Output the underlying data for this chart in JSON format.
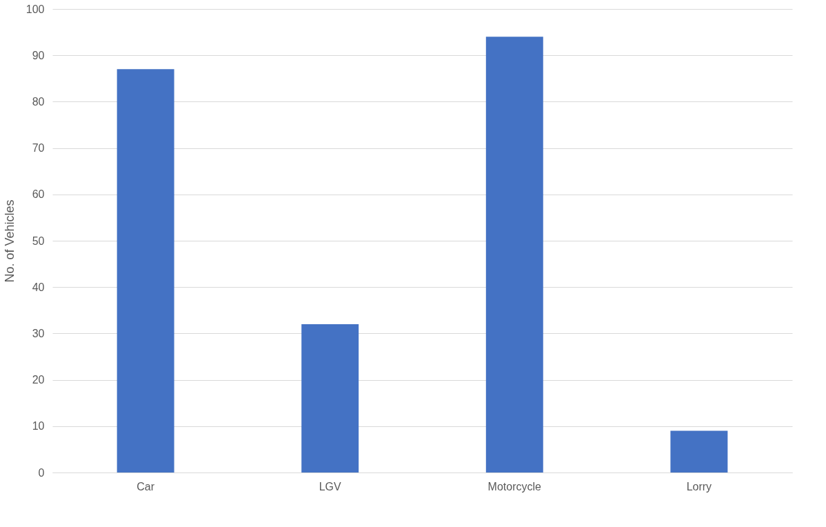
{
  "chart_data": {
    "type": "bar",
    "ylabel": "No. of  Vehicles",
    "categories": [
      "Car",
      "LGV",
      "Motorcycle",
      "Lorry"
    ],
    "values": [
      87,
      32,
      94,
      9
    ],
    "color": "#4472c4",
    "ylim": [
      0,
      100
    ],
    "yticks": [
      0,
      10,
      20,
      30,
      40,
      50,
      60,
      70,
      80,
      90,
      100
    ],
    "grid": "y"
  }
}
